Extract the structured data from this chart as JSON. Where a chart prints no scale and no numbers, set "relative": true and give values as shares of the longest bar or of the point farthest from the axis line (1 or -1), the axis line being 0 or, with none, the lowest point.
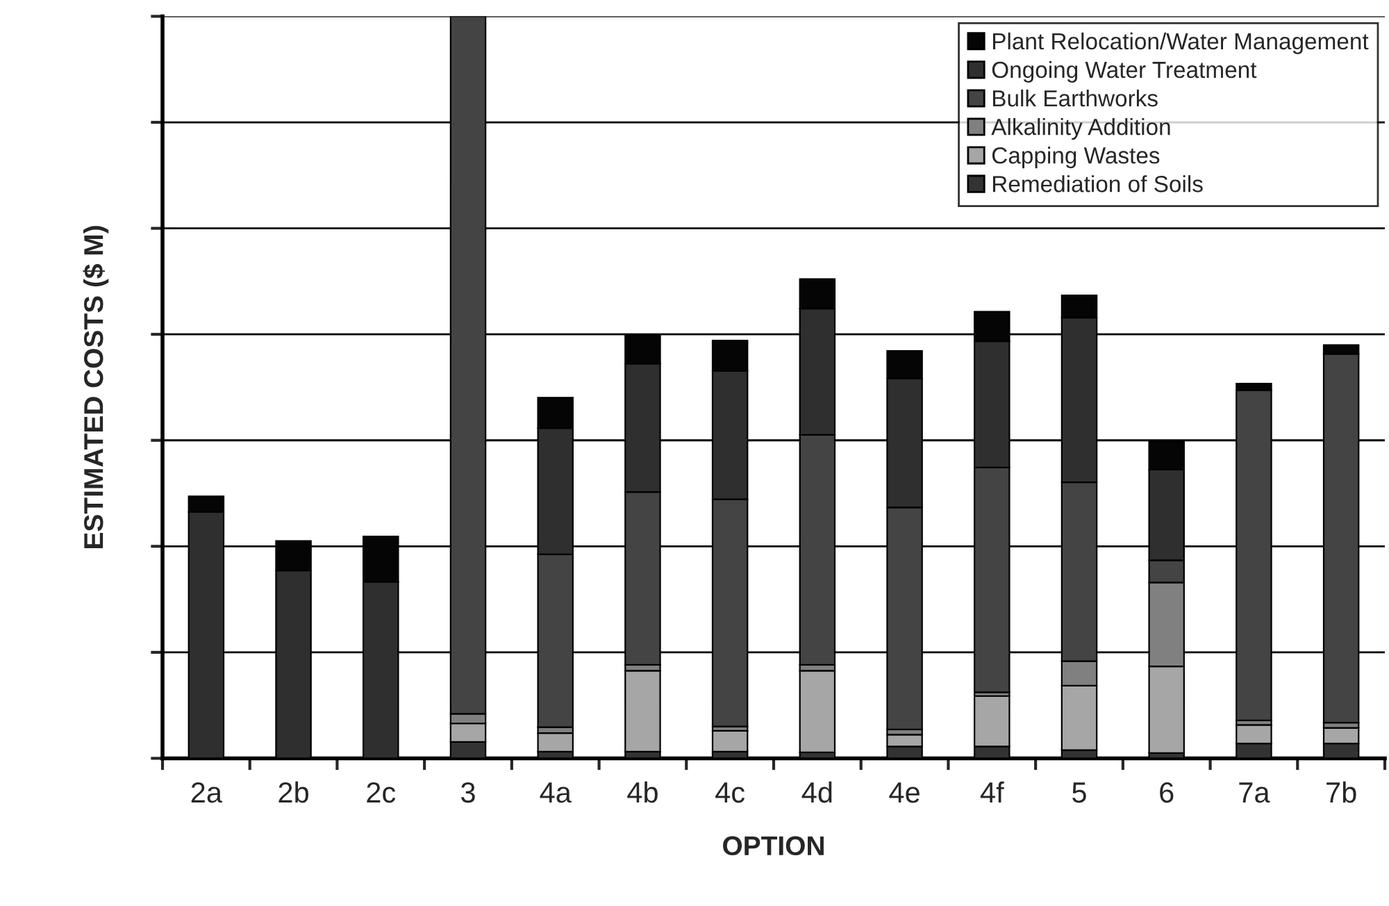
{
  "chart_data": {
    "type": "bar",
    "stacked": true,
    "relative": true,
    "xlabel": "OPTION",
    "ylabel": "ESTIMATED COSTS ($ M)",
    "categories": [
      "2a",
      "2b",
      "2c",
      "3",
      "4a",
      "4b",
      "4c",
      "4d",
      "4e",
      "4f",
      "5",
      "6",
      "7a",
      "7b"
    ],
    "series": [
      {
        "name": "Remediation of Soils",
        "color": "#333333",
        "values": [
          null,
          null,
          null,
          0.022,
          0.009,
          0.009,
          0.009,
          0.008,
          0.016,
          0.016,
          0.011,
          0.007,
          0.02,
          0.02
        ]
      },
      {
        "name": "Capping Wastes",
        "color": "#a6a6a6",
        "values": [
          null,
          null,
          null,
          0.025,
          0.025,
          0.109,
          0.028,
          0.11,
          0.016,
          0.068,
          0.087,
          0.117,
          0.025,
          0.021
        ]
      },
      {
        "name": "Alkalinity Addition",
        "color": "#808080",
        "values": [
          null,
          null,
          null,
          0.013,
          0.008,
          0.008,
          0.006,
          0.008,
          0.007,
          0.005,
          0.033,
          0.113,
          0.006,
          0.007
        ]
      },
      {
        "name": "Bulk Earthworks",
        "color": "#434443",
        "values": [
          null,
          null,
          null,
          0.94,
          0.233,
          0.233,
          0.306,
          0.31,
          0.299,
          0.303,
          0.241,
          0.03,
          0.445,
          0.497
        ]
      },
      {
        "name": "Ongoing Water Treatment",
        "color": "#2f2f2f",
        "values": [
          0.332,
          0.253,
          0.238,
          null,
          0.17,
          0.173,
          0.173,
          0.17,
          0.174,
          0.17,
          0.222,
          0.122,
          null,
          null
        ]
      },
      {
        "name": "Plant Relocation/Water Management",
        "color": "#050505",
        "values": [
          0.021,
          0.04,
          0.061,
          null,
          0.041,
          0.038,
          0.041,
          0.04,
          0.037,
          0.04,
          0.03,
          0.038,
          0.009,
          0.012
        ]
      }
    ],
    "grid": "y",
    "legend": "top right"
  }
}
